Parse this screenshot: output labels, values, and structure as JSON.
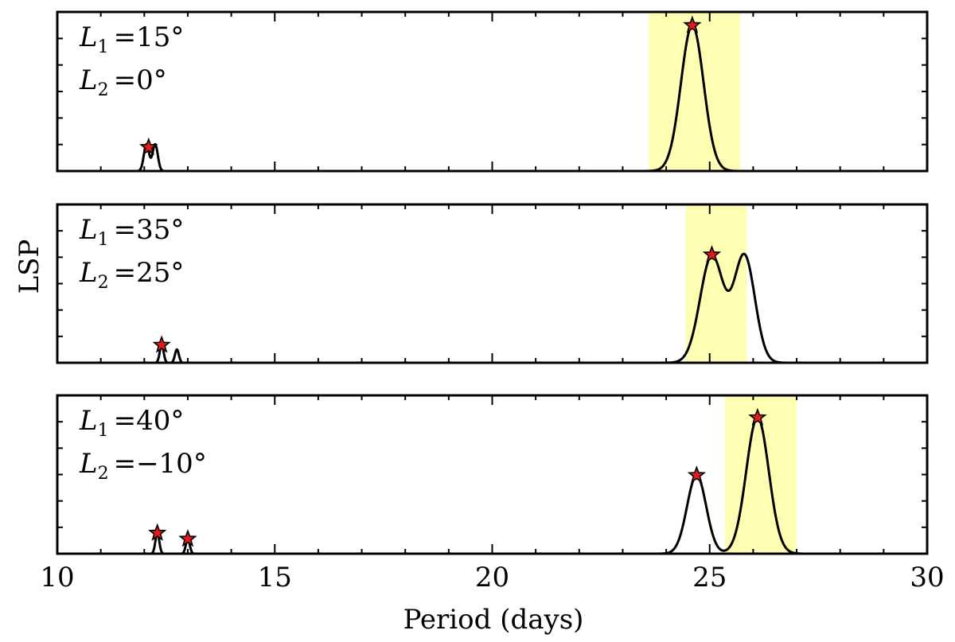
{
  "chart_data": {
    "type": "line",
    "xlabel": "Period (days)",
    "ylabel": "LSP",
    "xlim": [
      10,
      30
    ],
    "xticks": [
      10,
      15,
      20,
      25,
      30
    ],
    "xtick_labels": [
      "10",
      "15",
      "20",
      "25",
      "30"
    ],
    "grid": false,
    "line_color": "#000000",
    "marker_color": "#e41a1c",
    "highlight_color": "#ffffb3",
    "panels": [
      {
        "annotation": {
          "l1_symbol": "L",
          "l1_sub": "1",
          "l1_value": "=15°",
          "l2_symbol": "L",
          "l2_sub": "2",
          "l2_value": "=0°"
        },
        "ylim": [
          0,
          1.07
        ],
        "highlight": [
          23.6,
          25.7
        ],
        "peaks": [
          {
            "center": 12.05,
            "amp": 0.18,
            "sigma": 0.06
          },
          {
            "center": 12.25,
            "amp": 0.18,
            "sigma": 0.06
          },
          {
            "center": 24.6,
            "amp": 0.98,
            "sigma": 0.26
          }
        ],
        "markers": [
          {
            "x": 12.1,
            "y": 0.16
          },
          {
            "x": 24.6,
            "y": 0.98
          }
        ]
      },
      {
        "annotation": {
          "l1_symbol": "L",
          "l1_sub": "1",
          "l1_value": "=35°",
          "l2_symbol": "L",
          "l2_sub": "2",
          "l2_value": "=25°"
        },
        "ylim": [
          0,
          1.07
        ],
        "highlight": [
          24.45,
          25.85
        ],
        "peaks": [
          {
            "center": 12.4,
            "amp": 0.12,
            "sigma": 0.045
          },
          {
            "center": 12.75,
            "amp": 0.09,
            "sigma": 0.045
          },
          {
            "center": 25.05,
            "amp": 0.72,
            "sigma": 0.27
          },
          {
            "center": 25.8,
            "amp": 0.72,
            "sigma": 0.24
          }
        ],
        "markers": [
          {
            "x": 12.4,
            "y": 0.12
          },
          {
            "x": 25.05,
            "y": 0.73
          }
        ]
      },
      {
        "annotation": {
          "l1_symbol": "L",
          "l1_sub": "1",
          "l1_value": "=40°",
          "l2_symbol": "L",
          "l2_sub": "2",
          "l2_value": "=−10°"
        },
        "ylim": [
          0,
          1.07
        ],
        "highlight": [
          25.35,
          27.0
        ],
        "peaks": [
          {
            "center": 12.3,
            "amp": 0.14,
            "sigma": 0.045
          },
          {
            "center": 13.0,
            "amp": 0.1,
            "sigma": 0.045
          },
          {
            "center": 24.7,
            "amp": 0.53,
            "sigma": 0.22
          },
          {
            "center": 26.1,
            "amp": 0.92,
            "sigma": 0.26
          }
        ],
        "markers": [
          {
            "x": 12.3,
            "y": 0.14
          },
          {
            "x": 13.0,
            "y": 0.1
          },
          {
            "x": 24.7,
            "y": 0.53
          },
          {
            "x": 26.1,
            "y": 0.92
          }
        ]
      }
    ]
  }
}
